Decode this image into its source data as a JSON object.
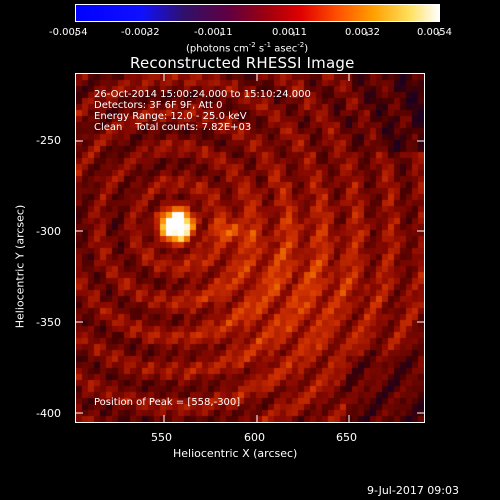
{
  "colorbar": {
    "ticks": [
      "-0.0054",
      "-0.0032",
      "-0.0011",
      "0.0011",
      "0.0032",
      "0.0054"
    ],
    "units_main": "(photons cm",
    "units_sup1": "-2",
    "units_mid": " s",
    "units_sup2": "-1",
    "units_mid2": " asec",
    "units_sup3": "-2",
    "units_end": ")"
  },
  "plot": {
    "title": "Reconstructed RHESSI Image",
    "xlabel": "Heliocentric X (arcsec)",
    "ylabel": "Heliocentric Y (arcsec)",
    "xticks": [
      "550",
      "600",
      "650"
    ],
    "yticks": [
      "-250",
      "-300",
      "-350",
      "-400"
    ],
    "annotations": {
      "time": "26-Oct-2014 15:00:24.000 to 15:10:24.000",
      "detectors": "Detectors: 3F 6F 9F, Att 0",
      "energy": "Energy Range: 12.0 - 25.0 keV",
      "method": "Clean    Total counts: 7.82E+03",
      "peak": "Position of Peak = [558,-300]"
    }
  },
  "footer": {
    "date": "9-Jul-2017 09:03"
  },
  "image": {
    "peak_x": 558,
    "peak_y": -300,
    "secondary_x": 588,
    "secondary_y": -303,
    "x_range": [
      505,
      690
    ],
    "y_range": [
      -405,
      -220
    ]
  }
}
